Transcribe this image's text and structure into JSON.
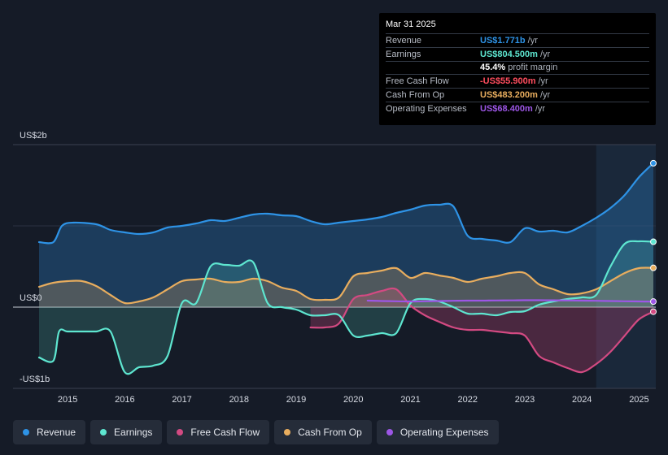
{
  "colors": {
    "revenue": "#2e93e6",
    "earnings": "#5ee6d0",
    "free_cash_flow": "#d34a82",
    "cash_from_op": "#e8ad5e",
    "operating_expenses": "#9d56e6"
  },
  "tooltip": {
    "date": "Mar 31 2025",
    "rows": [
      {
        "label": "Revenue",
        "value": "US$1.771b",
        "unit": "/yr"
      },
      {
        "label": "Earnings",
        "value": "US$804.500m",
        "unit": "/yr"
      },
      {
        "label": "",
        "value": "45.4%",
        "unit": "profit margin"
      },
      {
        "label": "Free Cash Flow",
        "value": "-US$55.900m",
        "unit": "/yr"
      },
      {
        "label": "Cash From Op",
        "value": "US$483.200m",
        "unit": "/yr"
      },
      {
        "label": "Operating Expenses",
        "value": "US$68.400m",
        "unit": "/yr"
      }
    ]
  },
  "legend": [
    {
      "label": "Revenue",
      "key": "revenue"
    },
    {
      "label": "Earnings",
      "key": "earnings"
    },
    {
      "label": "Free Cash Flow",
      "key": "free_cash_flow"
    },
    {
      "label": "Cash From Op",
      "key": "cash_from_op"
    },
    {
      "label": "Operating Expenses",
      "key": "operating_expenses"
    }
  ],
  "chart_data": {
    "type": "line",
    "title": "",
    "y_unit": "US$ billions",
    "ylim": [
      -1,
      2
    ],
    "xlim": [
      2014.5,
      2025.25
    ],
    "y_tick_labels": [
      {
        "value": 2,
        "label": "US$2b"
      },
      {
        "value": 0,
        "label": "US$0"
      },
      {
        "value": -1,
        "label": "-US$1b"
      }
    ],
    "x_ticks": [
      2015,
      2016,
      2017,
      2018,
      2019,
      2020,
      2021,
      2022,
      2023,
      2024,
      2025
    ],
    "highlight_from": 2024.25,
    "series": [
      {
        "name": "Revenue",
        "key": "revenue",
        "area": true,
        "x": [
          2014.5,
          2014.75,
          2014.9,
          2015.1,
          2015.5,
          2015.75,
          2016.0,
          2016.25,
          2016.5,
          2016.75,
          2017.0,
          2017.25,
          2017.5,
          2017.75,
          2018.0,
          2018.25,
          2018.5,
          2018.75,
          2019.0,
          2019.25,
          2019.5,
          2019.75,
          2020.0,
          2020.25,
          2020.5,
          2020.75,
          2021.0,
          2021.25,
          2021.5,
          2021.75,
          2022.0,
          2022.25,
          2022.5,
          2022.75,
          2023.0,
          2023.25,
          2023.5,
          2023.75,
          2024.0,
          2024.25,
          2024.5,
          2024.75,
          2025.0,
          2025.25
        ],
        "values": [
          0.8,
          0.8,
          1.0,
          1.04,
          1.02,
          0.95,
          0.92,
          0.9,
          0.92,
          0.98,
          1.0,
          1.03,
          1.07,
          1.06,
          1.1,
          1.14,
          1.15,
          1.13,
          1.12,
          1.06,
          1.02,
          1.04,
          1.06,
          1.08,
          1.11,
          1.16,
          1.2,
          1.25,
          1.26,
          1.24,
          0.88,
          0.84,
          0.82,
          0.8,
          0.97,
          0.93,
          0.94,
          0.92,
          1.0,
          1.1,
          1.22,
          1.38,
          1.6,
          1.771
        ]
      },
      {
        "name": "Earnings",
        "key": "earnings",
        "area": true,
        "x": [
          2014.5,
          2014.75,
          2014.85,
          2015.0,
          2015.25,
          2015.5,
          2015.75,
          2016.0,
          2016.25,
          2016.5,
          2016.75,
          2017.0,
          2017.25,
          2017.5,
          2017.75,
          2018.0,
          2018.25,
          2018.5,
          2018.75,
          2019.0,
          2019.25,
          2019.5,
          2019.75,
          2020.0,
          2020.25,
          2020.5,
          2020.75,
          2021.0,
          2021.25,
          2021.5,
          2021.75,
          2022.0,
          2022.25,
          2022.5,
          2022.75,
          2023.0,
          2023.25,
          2023.5,
          2023.75,
          2024.0,
          2024.25,
          2024.5,
          2024.75,
          2025.0,
          2025.25
        ],
        "values": [
          -0.62,
          -0.66,
          -0.3,
          -0.3,
          -0.3,
          -0.3,
          -0.3,
          -0.8,
          -0.74,
          -0.72,
          -0.6,
          0.05,
          0.05,
          0.5,
          0.52,
          0.51,
          0.55,
          0.05,
          0.0,
          -0.03,
          -0.1,
          -0.1,
          -0.1,
          -0.35,
          -0.35,
          -0.32,
          -0.32,
          0.05,
          0.1,
          0.07,
          0.0,
          -0.08,
          -0.08,
          -0.1,
          -0.06,
          -0.05,
          0.03,
          0.07,
          0.1,
          0.12,
          0.15,
          0.5,
          0.78,
          0.81,
          0.8045
        ]
      },
      {
        "name": "Free Cash Flow",
        "key": "free_cash_flow",
        "area": true,
        "x": [
          2019.25,
          2019.5,
          2019.75,
          2020.0,
          2020.25,
          2020.5,
          2020.75,
          2021.0,
          2021.25,
          2021.5,
          2021.75,
          2022.0,
          2022.25,
          2022.5,
          2022.75,
          2023.0,
          2023.25,
          2023.5,
          2023.75,
          2024.0,
          2024.25,
          2024.5,
          2024.75,
          2025.0,
          2025.25
        ],
        "values": [
          -0.25,
          -0.25,
          -0.2,
          0.1,
          0.15,
          0.2,
          0.22,
          0.02,
          -0.1,
          -0.18,
          -0.25,
          -0.28,
          -0.28,
          -0.3,
          -0.32,
          -0.35,
          -0.6,
          -0.68,
          -0.75,
          -0.8,
          -0.7,
          -0.55,
          -0.35,
          -0.15,
          -0.0559
        ]
      },
      {
        "name": "Cash From Op",
        "key": "cash_from_op",
        "area": true,
        "x": [
          2014.5,
          2014.75,
          2015.0,
          2015.25,
          2015.5,
          2015.75,
          2016.0,
          2016.25,
          2016.5,
          2016.75,
          2017.0,
          2017.25,
          2017.5,
          2017.75,
          2018.0,
          2018.25,
          2018.5,
          2018.75,
          2019.0,
          2019.25,
          2019.5,
          2019.75,
          2020.0,
          2020.25,
          2020.5,
          2020.75,
          2021.0,
          2021.25,
          2021.5,
          2021.75,
          2022.0,
          2022.25,
          2022.5,
          2022.75,
          2023.0,
          2023.25,
          2023.5,
          2023.75,
          2024.0,
          2024.25,
          2024.5,
          2024.75,
          2025.0,
          2025.25
        ],
        "values": [
          0.25,
          0.3,
          0.32,
          0.32,
          0.26,
          0.15,
          0.05,
          0.07,
          0.12,
          0.22,
          0.32,
          0.34,
          0.35,
          0.31,
          0.31,
          0.35,
          0.32,
          0.24,
          0.2,
          0.1,
          0.09,
          0.12,
          0.38,
          0.42,
          0.45,
          0.48,
          0.36,
          0.42,
          0.39,
          0.36,
          0.31,
          0.35,
          0.38,
          0.42,
          0.42,
          0.28,
          0.22,
          0.16,
          0.17,
          0.22,
          0.32,
          0.42,
          0.48,
          0.4832
        ]
      },
      {
        "name": "Operating Expenses",
        "key": "operating_expenses",
        "area": false,
        "x": [
          2020.25,
          2020.5,
          2020.75,
          2021.0,
          2021.25,
          2021.5,
          2021.75,
          2022.0,
          2022.25,
          2022.5,
          2022.75,
          2023.0,
          2023.25,
          2023.5,
          2023.75,
          2024.0,
          2024.25,
          2024.5,
          2024.75,
          2025.0,
          2025.25
        ],
        "values": [
          0.08,
          0.075,
          0.072,
          0.07,
          0.072,
          0.075,
          0.078,
          0.08,
          0.08,
          0.082,
          0.083,
          0.085,
          0.085,
          0.084,
          0.082,
          0.08,
          0.078,
          0.075,
          0.072,
          0.07,
          0.0684
        ]
      }
    ]
  }
}
